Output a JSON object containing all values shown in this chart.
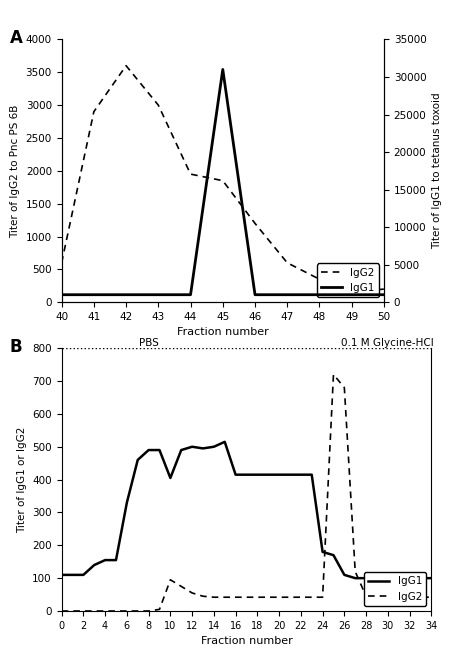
{
  "panel_A": {
    "IgG2_x": [
      40,
      41,
      42,
      43,
      44,
      45,
      46,
      47,
      48,
      49,
      50
    ],
    "IgG2_y": [
      600,
      2900,
      3600,
      3000,
      1950,
      1850,
      1200,
      600,
      350,
      150,
      200
    ],
    "IgG1_x": [
      40,
      41,
      42,
      43,
      44,
      45,
      46,
      47,
      48,
      49,
      50
    ],
    "IgG1_y": [
      1000,
      1000,
      1000,
      1000,
      1000,
      31000,
      1000,
      1000,
      1000,
      1000,
      1000
    ],
    "ylabel_left": "Titer of IgG2 to Pnc PS 6B",
    "ylabel_right": "Titer of IgG1 to tetanus toxoid",
    "xlabel": "Fraction number",
    "xlim": [
      40,
      50
    ],
    "ylim_left": [
      0,
      4000
    ],
    "ylim_right": [
      0,
      35000
    ],
    "yticks_left": [
      0,
      500,
      1000,
      1500,
      2000,
      2500,
      3000,
      3500,
      4000
    ],
    "yticks_right": [
      0,
      5000,
      10000,
      15000,
      20000,
      25000,
      30000,
      35000
    ],
    "xticks": [
      40,
      41,
      42,
      43,
      44,
      45,
      46,
      47,
      48,
      49,
      50
    ],
    "label": "A"
  },
  "panel_B": {
    "IgG1_x": [
      0,
      1,
      2,
      3,
      4,
      5,
      6,
      7,
      8,
      9,
      10,
      11,
      12,
      13,
      14,
      15,
      16,
      17,
      18,
      19,
      20,
      21,
      22,
      23,
      24,
      25,
      26,
      27,
      28,
      29,
      30,
      31,
      32,
      33,
      34
    ],
    "IgG1_y": [
      110,
      110,
      110,
      140,
      155,
      155,
      330,
      460,
      490,
      490,
      405,
      490,
      500,
      495,
      500,
      515,
      415,
      415,
      415,
      415,
      415,
      415,
      415,
      415,
      180,
      170,
      110,
      100,
      100,
      100,
      100,
      100,
      100,
      100,
      100
    ],
    "IgG2_x": [
      0,
      1,
      2,
      3,
      4,
      5,
      6,
      7,
      8,
      9,
      10,
      11,
      12,
      13,
      14,
      15,
      16,
      17,
      18,
      19,
      20,
      21,
      22,
      23,
      24,
      25,
      26,
      27,
      28,
      29,
      30,
      31,
      32,
      33,
      34
    ],
    "IgG2_y": [
      0,
      0,
      0,
      0,
      0,
      0,
      0,
      0,
      0,
      5,
      95,
      75,
      55,
      45,
      42,
      42,
      42,
      42,
      42,
      42,
      42,
      42,
      42,
      42,
      42,
      720,
      680,
      120,
      45,
      42,
      42,
      42,
      42,
      42,
      42
    ],
    "PBS_label": "PBS",
    "glycine_label": "0.1 M Glycine-HCl",
    "ylabel": "Titer of IgG1 or IgG2",
    "xlabel": "Fraction number",
    "xlim": [
      0,
      34
    ],
    "ylim": [
      0,
      800
    ],
    "yticks": [
      0,
      100,
      200,
      300,
      400,
      500,
      600,
      700,
      800
    ],
    "xticks": [
      0,
      2,
      4,
      6,
      8,
      10,
      12,
      14,
      16,
      18,
      20,
      22,
      24,
      26,
      28,
      30,
      32,
      34
    ],
    "label": "B",
    "pbs_line_y": 800
  }
}
